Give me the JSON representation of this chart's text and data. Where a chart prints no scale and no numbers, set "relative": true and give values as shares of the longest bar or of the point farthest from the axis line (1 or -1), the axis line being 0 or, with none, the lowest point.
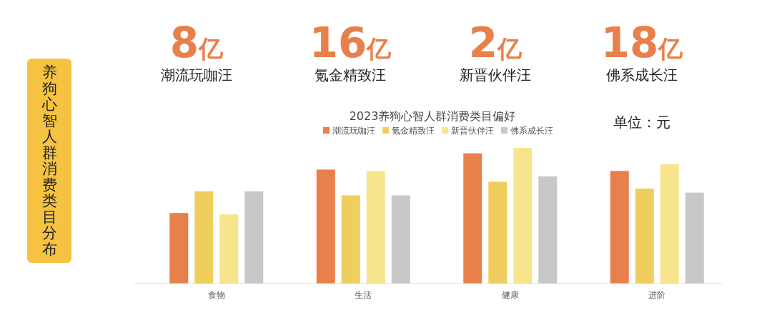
{
  "chart_data": {
    "type": "bar",
    "relative": true,
    "title": "2023养狗心智人群消费类目偏好",
    "categories": [
      "食物",
      "生活",
      "健康",
      "进阶"
    ],
    "series": [
      {
        "name": "潮流玩咖汪",
        "color": "#e8804b",
        "values": [
          0.52,
          0.84,
          0.96,
          0.83
        ]
      },
      {
        "name": "氪金精致汪",
        "color": "#f0ce5e",
        "values": [
          0.68,
          0.65,
          0.75,
          0.7
        ]
      },
      {
        "name": "新晋伙伴汪",
        "color": "#f6e58d",
        "values": [
          0.51,
          0.83,
          1,
          0.88
        ]
      },
      {
        "name": "佛系成长汪",
        "color": "#c8c8c8",
        "values": [
          0.68,
          0.65,
          0.79,
          0.67
        ]
      }
    ],
    "legend": "top",
    "annotations": [
      "养狗心智人群消费类目分布",
      "8亿",
      "潮流玩咖汪",
      "16亿",
      "氪金精致汪",
      "2亿",
      "新晋伙伴汪",
      "18亿",
      "佛系成长汪",
      "单位：元"
    ]
  }
}
